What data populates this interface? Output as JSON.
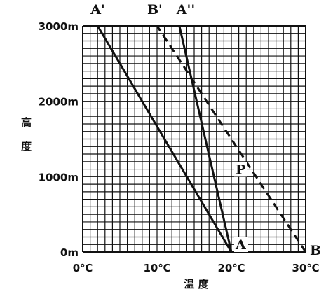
{
  "chart_data": {
    "type": "line",
    "xlabel": "温 度",
    "ylabel": "高度",
    "xlim": [
      0,
      30
    ],
    "ylim": [
      0,
      3000
    ],
    "x_ticks": [
      {
        "value": 0,
        "label": "0℃"
      },
      {
        "value": 10,
        "label": "10℃"
      },
      {
        "value": 20,
        "label": "20℃"
      },
      {
        "value": 30,
        "label": "30℃"
      }
    ],
    "y_ticks": [
      {
        "value": 0,
        "label": "0m"
      },
      {
        "value": 1000,
        "label": "1000m"
      },
      {
        "value": 2000,
        "label": "2000m"
      },
      {
        "value": 3000,
        "label": "3000m"
      }
    ],
    "grid": true,
    "series": [
      {
        "from": "A",
        "to": "A'",
        "style": "solid",
        "points": [
          [
            20,
            0
          ],
          [
            2,
            3000
          ]
        ]
      },
      {
        "from": "A",
        "to": "A''",
        "style": "solid",
        "points": [
          [
            20,
            0
          ],
          [
            13,
            3000
          ]
        ]
      },
      {
        "from": "B",
        "to": "B'",
        "style": "dashed",
        "points": [
          [
            30,
            0
          ],
          [
            10,
            3000
          ]
        ]
      }
    ],
    "point_labels": [
      {
        "label": "A",
        "x": 20,
        "y": 0
      },
      {
        "label": "B",
        "x": 30,
        "y": 0
      },
      {
        "label": "P",
        "x": 20,
        "y": 1000
      },
      {
        "label": "A'",
        "x": 2,
        "y": 3000
      },
      {
        "label": "B'",
        "x": 10,
        "y": 3000
      },
      {
        "label": "A''",
        "x": 13,
        "y": 3000
      }
    ]
  }
}
